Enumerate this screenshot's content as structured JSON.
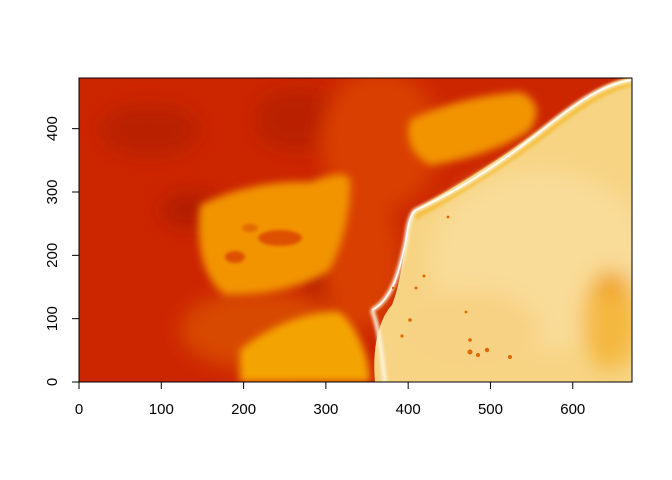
{
  "chart_data": {
    "type": "heatmap",
    "title": "",
    "xlabel": "",
    "ylabel": "",
    "xlim": [
      0,
      672
    ],
    "ylim": [
      0,
      480
    ],
    "x_ticks": [
      0,
      100,
      200,
      300,
      400,
      500,
      600
    ],
    "y_ticks": [
      0,
      100,
      200,
      300,
      400
    ],
    "x_tick_labels": [
      "0",
      "100",
      "200",
      "300",
      "400",
      "500",
      "600"
    ],
    "y_tick_labels": [
      "0",
      "100",
      "200",
      "300",
      "400"
    ],
    "colormap": "heat",
    "colors": {
      "low": "#cc2600",
      "mid_low": "#e05a00",
      "mid": "#f29400",
      "mid_high": "#f5c040",
      "high": "#f8dc8c",
      "highest": "#fdf6e0"
    },
    "legend": "none",
    "grid": false
  }
}
